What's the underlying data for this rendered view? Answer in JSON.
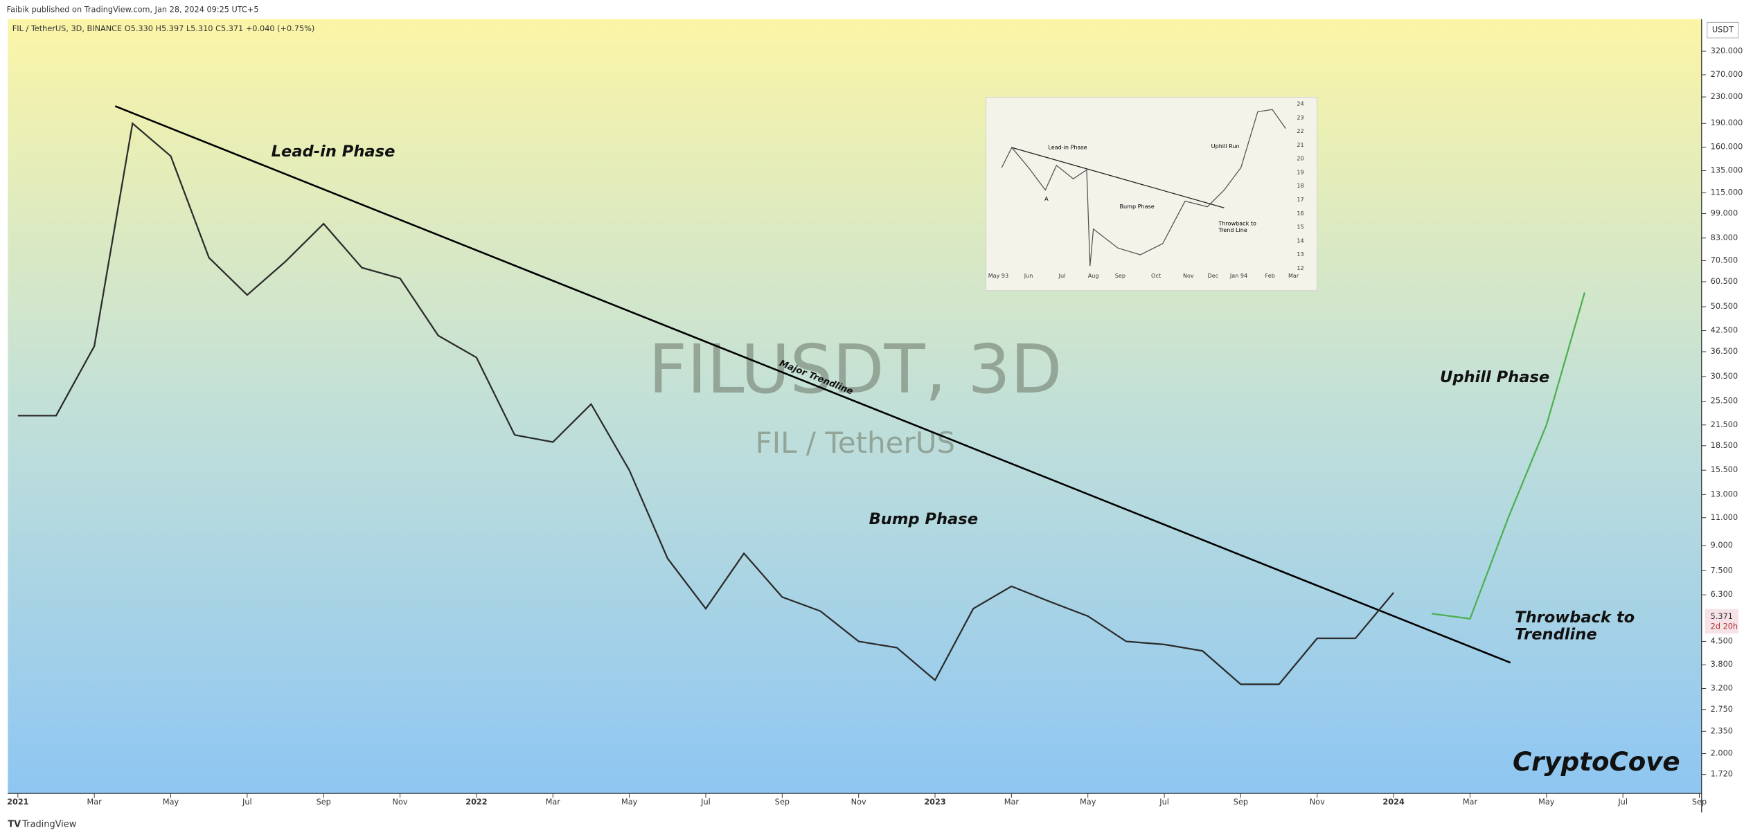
{
  "header": {
    "publisher": "Faibik published on TradingView.com, Jan 28, 2024 09:25 UTC+5",
    "symbol": "FIL / TetherUS, 3D, BINANCE  O5.330 H5.397 L5.310 C5.371 +0.040 (+0.75%)",
    "currency": "USDT",
    "last_price": "5.371",
    "countdown": "2d 20h",
    "footer": "TradingView"
  },
  "watermark": {
    "ticker": "FILUSDT, 3D",
    "name": "FIL / TetherUS"
  },
  "annotations": {
    "lead_in": "Lead-in Phase",
    "trendline": "Major Trendline",
    "bump": "Bump Phase",
    "uphill": "Uphill Phase",
    "throwback_1": "Throwback to",
    "throwback_2": "Trendline",
    "brand": "CryptoCove"
  },
  "inset": {
    "labels": {
      "lead_in": "Lead-in Phase",
      "bump": "Bump Phase",
      "uphill": "Uphill Run",
      "throwback_1": "Throwback to",
      "throwback_2": "Trend Line",
      "a": "A"
    },
    "yticks": [
      "24",
      "23",
      "22",
      "21",
      "20",
      "19",
      "18",
      "17",
      "16",
      "15",
      "14",
      "13",
      "12"
    ],
    "months": [
      "May 93",
      "Jun",
      "Jul",
      "Aug",
      "Sep",
      "Oct",
      "Nov",
      "Dec",
      "Jan 94",
      "Feb",
      "Mar"
    ]
  },
  "chart_data": {
    "type": "line",
    "log_scale": true,
    "xlim": [
      "2021-01",
      "2024-09"
    ],
    "xticks": [
      {
        "value": "2021-01",
        "label": "2021"
      },
      {
        "value": "2021-03",
        "label": "Mar"
      },
      {
        "value": "2021-05",
        "label": "May"
      },
      {
        "value": "2021-07",
        "label": "Jul"
      },
      {
        "value": "2021-09",
        "label": "Sep"
      },
      {
        "value": "2021-11",
        "label": "Nov"
      },
      {
        "value": "2022-01",
        "label": "2022"
      },
      {
        "value": "2022-03",
        "label": "Mar"
      },
      {
        "value": "2022-05",
        "label": "May"
      },
      {
        "value": "2022-07",
        "label": "Jul"
      },
      {
        "value": "2022-09",
        "label": "Sep"
      },
      {
        "value": "2022-11",
        "label": "Nov"
      },
      {
        "value": "2023-01",
        "label": "2023"
      },
      {
        "value": "2023-03",
        "label": "Mar"
      },
      {
        "value": "2023-05",
        "label": "May"
      },
      {
        "value": "2023-07",
        "label": "Jul"
      },
      {
        "value": "2023-09",
        "label": "Sep"
      },
      {
        "value": "2023-11",
        "label": "Nov"
      },
      {
        "value": "2024-01",
        "label": "2024"
      },
      {
        "value": "2024-03",
        "label": "Mar"
      },
      {
        "value": "2024-05",
        "label": "May"
      },
      {
        "value": "2024-07",
        "label": "Jul"
      },
      {
        "value": "2024-09",
        "label": "Sep"
      }
    ],
    "ylim": [
      1.5,
      404
    ],
    "yticks": [
      {
        "value": 320,
        "label": "320.000"
      },
      {
        "value": 270,
        "label": "270.000"
      },
      {
        "value": 230,
        "label": "230.000"
      },
      {
        "value": 190,
        "label": "190.000"
      },
      {
        "value": 160,
        "label": "160.000"
      },
      {
        "value": 135,
        "label": "135.000"
      },
      {
        "value": 115,
        "label": "115.000"
      },
      {
        "value": 99,
        "label": "99.000"
      },
      {
        "value": 83,
        "label": "83.000"
      },
      {
        "value": 70.5,
        "label": "70.500"
      },
      {
        "value": 60.5,
        "label": "60.500"
      },
      {
        "value": 50.5,
        "label": "50.500"
      },
      {
        "value": 42.5,
        "label": "42.500"
      },
      {
        "value": 36.5,
        "label": "36.500"
      },
      {
        "value": 30.5,
        "label": "30.500"
      },
      {
        "value": 25.5,
        "label": "25.500"
      },
      {
        "value": 21.5,
        "label": "21.500"
      },
      {
        "value": 18.5,
        "label": "18.500"
      },
      {
        "value": 15.5,
        "label": "15.500"
      },
      {
        "value": 13,
        "label": "13.000"
      },
      {
        "value": 11,
        "label": "11.000"
      },
      {
        "value": 9,
        "label": "9.000"
      },
      {
        "value": 7.5,
        "label": "7.500"
      },
      {
        "value": 6.3,
        "label": "6.300"
      },
      {
        "value": 4.5,
        "label": "4.500"
      },
      {
        "value": 3.8,
        "label": "3.800"
      },
      {
        "value": 3.2,
        "label": "3.200"
      },
      {
        "value": 2.75,
        "label": "2.750"
      },
      {
        "value": 2.35,
        "label": "2.350"
      },
      {
        "value": 2,
        "label": "2.000"
      },
      {
        "value": 1.72,
        "label": "1.720"
      }
    ],
    "series": [
      {
        "name": "FIL / TetherUS",
        "color": "#2b2b2b",
        "x": [
          "2021-01",
          "2021-02",
          "2021-03",
          "2021-04",
          "2021-05",
          "2021-06",
          "2021-07",
          "2021-08",
          "2021-09",
          "2021-10",
          "2021-11",
          "2021-12",
          "2022-01",
          "2022-02",
          "2022-03",
          "2022-04",
          "2022-05",
          "2022-06",
          "2022-07",
          "2022-08",
          "2022-09",
          "2022-10",
          "2022-11",
          "2022-12",
          "2023-01",
          "2023-02",
          "2023-03",
          "2023-04",
          "2023-05",
          "2023-06",
          "2023-07",
          "2023-08",
          "2023-09",
          "2023-10",
          "2023-11",
          "2023-12",
          "2024-01"
        ],
        "values": [
          23,
          23,
          38,
          190,
          150,
          72,
          55,
          70,
          92,
          67,
          62,
          41,
          35,
          20,
          19,
          25,
          15.5,
          8.2,
          5.7,
          8.5,
          6.2,
          5.6,
          4.5,
          4.3,
          3.4,
          5.7,
          6.7,
          6,
          5.4,
          4.5,
          4.4,
          4.2,
          3.3,
          3.3,
          4.6,
          4.6,
          6.4
        ]
      },
      {
        "name": "Projection",
        "color": "#4caf50",
        "x": [
          "2024-02",
          "2024-03",
          "2024-04",
          "2024-05",
          "2024-06"
        ],
        "values": [
          5.5,
          5.3,
          11,
          21.5,
          56
        ]
      }
    ]
  }
}
